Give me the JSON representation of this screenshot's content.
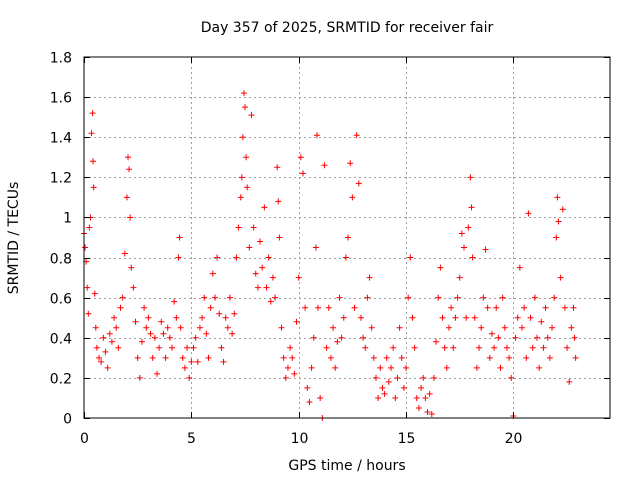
{
  "chart_data": {
    "type": "scatter",
    "title": "Day 357 of 2025, SRMTID for receiver fair",
    "xlabel": "GPS time / hours",
    "ylabel": "SRMTID / TECUs",
    "xlim": [
      0,
      24.5
    ],
    "ylim": [
      0,
      1.8
    ],
    "xticks": [
      0,
      5,
      10,
      15,
      20
    ],
    "xtick_labels": [
      "0",
      "5",
      "10",
      "15",
      "20"
    ],
    "yticks": [
      0,
      0.2,
      0.4,
      0.6,
      0.8,
      1,
      1.2,
      1.4,
      1.6,
      1.8
    ],
    "ytick_labels": [
      "0",
      "0.2",
      "0.4",
      "0.6",
      "0.8",
      "1",
      "1.2",
      "1.4",
      "1.6",
      "1.8"
    ],
    "grid": true,
    "marker": "+",
    "color": "#ff0000",
    "series": [
      {
        "name": "SRMTID",
        "points": [
          [
            0.0,
            0.92
          ],
          [
            0.05,
            0.85
          ],
          [
            0.1,
            0.78
          ],
          [
            0.15,
            0.65
          ],
          [
            0.2,
            0.52
          ],
          [
            0.25,
            0.95
          ],
          [
            0.3,
            1.0
          ],
          [
            0.35,
            1.42
          ],
          [
            0.4,
            1.52
          ],
          [
            0.42,
            1.28
          ],
          [
            0.45,
            1.15
          ],
          [
            0.5,
            0.62
          ],
          [
            0.55,
            0.45
          ],
          [
            0.6,
            0.35
          ],
          [
            0.7,
            0.3
          ],
          [
            0.8,
            0.28
          ],
          [
            0.9,
            0.4
          ],
          [
            1.0,
            0.33
          ],
          [
            1.1,
            0.25
          ],
          [
            1.2,
            0.42
          ],
          [
            1.3,
            0.38
          ],
          [
            1.4,
            0.5
          ],
          [
            1.5,
            0.45
          ],
          [
            1.6,
            0.35
          ],
          [
            1.7,
            0.55
          ],
          [
            1.8,
            0.6
          ],
          [
            1.9,
            0.82
          ],
          [
            2.0,
            1.1
          ],
          [
            2.05,
            1.3
          ],
          [
            2.1,
            1.24
          ],
          [
            2.15,
            1.0
          ],
          [
            2.2,
            0.75
          ],
          [
            2.3,
            0.65
          ],
          [
            2.4,
            0.48
          ],
          [
            2.5,
            0.3
          ],
          [
            2.6,
            0.2
          ],
          [
            2.7,
            0.38
          ],
          [
            2.8,
            0.55
          ],
          [
            2.9,
            0.45
          ],
          [
            3.0,
            0.5
          ],
          [
            3.1,
            0.42
          ],
          [
            3.2,
            0.3
          ],
          [
            3.3,
            0.4
          ],
          [
            3.4,
            0.22
          ],
          [
            3.5,
            0.35
          ],
          [
            3.6,
            0.48
          ],
          [
            3.7,
            0.42
          ],
          [
            3.8,
            0.3
          ],
          [
            3.9,
            0.45
          ],
          [
            4.0,
            0.4
          ],
          [
            4.1,
            0.35
          ],
          [
            4.2,
            0.58
          ],
          [
            4.3,
            0.5
          ],
          [
            4.4,
            0.8
          ],
          [
            4.45,
            0.9
          ],
          [
            4.5,
            0.45
          ],
          [
            4.6,
            0.3
          ],
          [
            4.7,
            0.25
          ],
          [
            4.8,
            0.35
          ],
          [
            4.9,
            0.2
          ],
          [
            5.0,
            0.28
          ],
          [
            5.1,
            0.35
          ],
          [
            5.2,
            0.4
          ],
          [
            5.3,
            0.28
          ],
          [
            5.4,
            0.45
          ],
          [
            5.5,
            0.5
          ],
          [
            5.6,
            0.6
          ],
          [
            5.7,
            0.42
          ],
          [
            5.8,
            0.3
          ],
          [
            5.9,
            0.55
          ],
          [
            6.0,
            0.72
          ],
          [
            6.1,
            0.6
          ],
          [
            6.2,
            0.8
          ],
          [
            6.3,
            0.52
          ],
          [
            6.4,
            0.35
          ],
          [
            6.5,
            0.28
          ],
          [
            6.6,
            0.5
          ],
          [
            6.7,
            0.45
          ],
          [
            6.8,
            0.6
          ],
          [
            6.9,
            0.42
          ],
          [
            7.0,
            0.52
          ],
          [
            7.1,
            0.8
          ],
          [
            7.2,
            0.95
          ],
          [
            7.3,
            1.1
          ],
          [
            7.35,
            1.2
          ],
          [
            7.4,
            1.4
          ],
          [
            7.45,
            1.62
          ],
          [
            7.5,
            1.55
          ],
          [
            7.55,
            1.3
          ],
          [
            7.6,
            1.15
          ],
          [
            7.7,
            0.85
          ],
          [
            7.8,
            1.51
          ],
          [
            7.9,
            0.95
          ],
          [
            8.0,
            0.72
          ],
          [
            8.1,
            0.65
          ],
          [
            8.2,
            0.88
          ],
          [
            8.3,
            0.75
          ],
          [
            8.4,
            1.05
          ],
          [
            8.5,
            0.65
          ],
          [
            8.6,
            0.8
          ],
          [
            8.7,
            0.58
          ],
          [
            8.8,
            0.7
          ],
          [
            8.9,
            0.6
          ],
          [
            9.0,
            1.25
          ],
          [
            9.05,
            1.08
          ],
          [
            9.1,
            0.9
          ],
          [
            9.2,
            0.45
          ],
          [
            9.3,
            0.3
          ],
          [
            9.4,
            0.2
          ],
          [
            9.5,
            0.25
          ],
          [
            9.6,
            0.35
          ],
          [
            9.7,
            0.3
          ],
          [
            9.8,
            0.22
          ],
          [
            9.9,
            0.48
          ],
          [
            10.0,
            0.7
          ],
          [
            10.1,
            1.3
          ],
          [
            10.2,
            1.22
          ],
          [
            10.3,
            0.55
          ],
          [
            10.4,
            0.15
          ],
          [
            10.5,
            0.08
          ],
          [
            10.6,
            0.25
          ],
          [
            10.7,
            0.4
          ],
          [
            10.8,
            0.85
          ],
          [
            10.85,
            1.41
          ],
          [
            10.9,
            0.55
          ],
          [
            11.0,
            0.1
          ],
          [
            11.1,
            0.0
          ],
          [
            11.2,
            1.26
          ],
          [
            11.3,
            0.35
          ],
          [
            11.4,
            0.55
          ],
          [
            11.5,
            0.3
          ],
          [
            11.6,
            0.45
          ],
          [
            11.7,
            0.25
          ],
          [
            11.8,
            0.38
          ],
          [
            11.9,
            0.6
          ],
          [
            12.0,
            0.4
          ],
          [
            12.1,
            0.5
          ],
          [
            12.2,
            0.8
          ],
          [
            12.3,
            0.9
          ],
          [
            12.4,
            1.27
          ],
          [
            12.5,
            1.1
          ],
          [
            12.6,
            0.55
          ],
          [
            12.7,
            1.41
          ],
          [
            12.8,
            1.17
          ],
          [
            12.9,
            0.5
          ],
          [
            13.0,
            0.4
          ],
          [
            13.1,
            0.35
          ],
          [
            13.2,
            0.6
          ],
          [
            13.3,
            0.7
          ],
          [
            13.4,
            0.45
          ],
          [
            13.5,
            0.3
          ],
          [
            13.6,
            0.2
          ],
          [
            13.7,
            0.1
          ],
          [
            13.8,
            0.25
          ],
          [
            13.9,
            0.15
          ],
          [
            14.0,
            0.12
          ],
          [
            14.1,
            0.3
          ],
          [
            14.2,
            0.18
          ],
          [
            14.3,
            0.25
          ],
          [
            14.4,
            0.35
          ],
          [
            14.5,
            0.1
          ],
          [
            14.6,
            0.2
          ],
          [
            14.7,
            0.45
          ],
          [
            14.8,
            0.3
          ],
          [
            14.9,
            0.15
          ],
          [
            15.0,
            0.25
          ],
          [
            15.1,
            0.6
          ],
          [
            15.2,
            0.8
          ],
          [
            15.3,
            0.5
          ],
          [
            15.4,
            0.35
          ],
          [
            15.5,
            0.1
          ],
          [
            15.6,
            0.05
          ],
          [
            15.7,
            0.15
          ],
          [
            15.8,
            0.2
          ],
          [
            15.9,
            0.1
          ],
          [
            16.0,
            0.03
          ],
          [
            16.1,
            0.12
          ],
          [
            16.2,
            0.02
          ],
          [
            16.3,
            0.2
          ],
          [
            16.4,
            0.38
          ],
          [
            16.5,
            0.6
          ],
          [
            16.6,
            0.75
          ],
          [
            16.7,
            0.5
          ],
          [
            16.8,
            0.35
          ],
          [
            16.9,
            0.25
          ],
          [
            17.0,
            0.45
          ],
          [
            17.1,
            0.55
          ],
          [
            17.2,
            0.35
          ],
          [
            17.3,
            0.5
          ],
          [
            17.4,
            0.6
          ],
          [
            17.5,
            0.7
          ],
          [
            17.6,
            0.92
          ],
          [
            17.7,
            0.85
          ],
          [
            17.8,
            0.5
          ],
          [
            17.9,
            0.95
          ],
          [
            18.0,
            1.2
          ],
          [
            18.05,
            1.05
          ],
          [
            18.1,
            0.8
          ],
          [
            18.2,
            0.5
          ],
          [
            18.3,
            0.25
          ],
          [
            18.4,
            0.35
          ],
          [
            18.5,
            0.45
          ],
          [
            18.6,
            0.6
          ],
          [
            18.7,
            0.84
          ],
          [
            18.8,
            0.55
          ],
          [
            18.9,
            0.3
          ],
          [
            19.0,
            0.42
          ],
          [
            19.1,
            0.35
          ],
          [
            19.2,
            0.55
          ],
          [
            19.3,
            0.4
          ],
          [
            19.4,
            0.25
          ],
          [
            19.5,
            0.6
          ],
          [
            19.6,
            0.45
          ],
          [
            19.7,
            0.35
          ],
          [
            19.8,
            0.3
          ],
          [
            19.9,
            0.2
          ],
          [
            20.0,
            0.01
          ],
          [
            20.1,
            0.4
          ],
          [
            20.2,
            0.5
          ],
          [
            20.3,
            0.75
          ],
          [
            20.4,
            0.45
          ],
          [
            20.5,
            0.55
          ],
          [
            20.6,
            0.3
          ],
          [
            20.7,
            1.02
          ],
          [
            20.8,
            0.5
          ],
          [
            20.9,
            0.35
          ],
          [
            21.0,
            0.6
          ],
          [
            21.1,
            0.4
          ],
          [
            21.2,
            0.25
          ],
          [
            21.3,
            0.48
          ],
          [
            21.4,
            0.35
          ],
          [
            21.5,
            0.55
          ],
          [
            21.6,
            0.4
          ],
          [
            21.7,
            0.3
          ],
          [
            21.8,
            0.45
          ],
          [
            21.9,
            0.6
          ],
          [
            22.0,
            0.9
          ],
          [
            22.05,
            1.1
          ],
          [
            22.1,
            0.98
          ],
          [
            22.2,
            0.7
          ],
          [
            22.3,
            1.04
          ],
          [
            22.4,
            0.55
          ],
          [
            22.5,
            0.35
          ],
          [
            22.6,
            0.18
          ],
          [
            22.7,
            0.45
          ],
          [
            22.8,
            0.55
          ],
          [
            22.85,
            0.4
          ],
          [
            22.9,
            0.3
          ]
        ]
      }
    ]
  }
}
